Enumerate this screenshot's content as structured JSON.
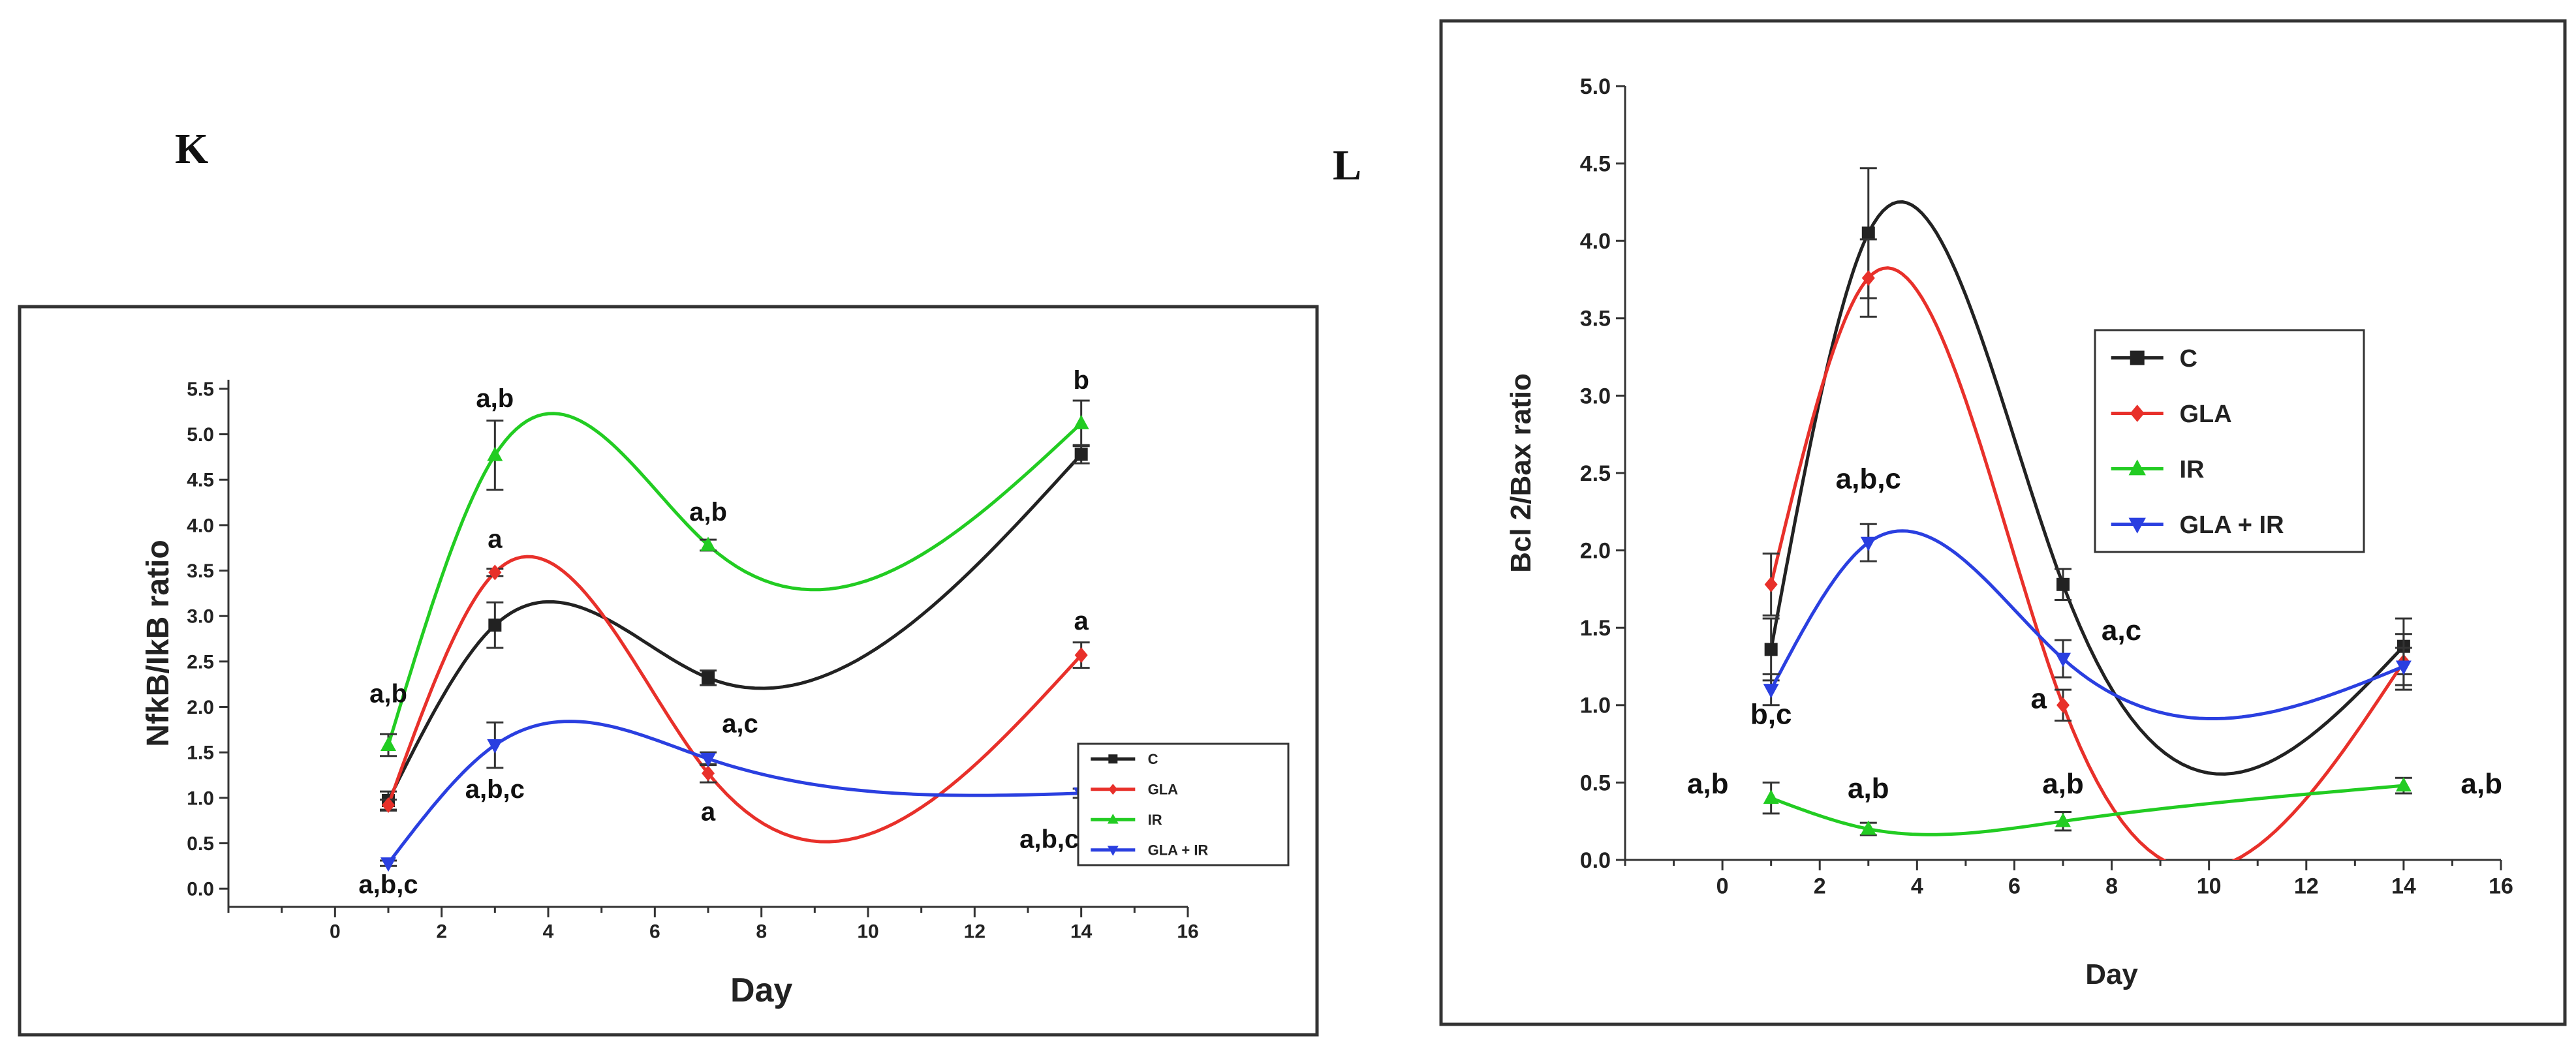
{
  "panels": {
    "left_label": "K",
    "right_label": "L"
  },
  "chart_data": [
    {
      "type": "line",
      "panel": "K",
      "xlabel": "Day",
      "ylabel": "NfkB/IkB ratio",
      "xlim": [
        -2,
        16
      ],
      "ylim": [
        -0.2,
        5.6
      ],
      "xticks": [
        0,
        2,
        4,
        6,
        8,
        10,
        12,
        14,
        16
      ],
      "yticks": [
        0.0,
        0.5,
        1.0,
        1.5,
        2.0,
        2.5,
        3.0,
        3.5,
        4.0,
        4.5,
        5.0,
        5.5
      ],
      "x": [
        1,
        3,
        7,
        14
      ],
      "series": [
        {
          "name": "C",
          "color": "#222222",
          "marker": "square",
          "values": [
            0.97,
            2.9,
            2.32,
            4.78
          ],
          "errors": [
            0.1,
            0.25,
            0.08,
            0.1
          ]
        },
        {
          "name": "GLA",
          "color": "#e8302a",
          "marker": "diamond",
          "values": [
            0.92,
            3.48,
            1.27,
            2.57
          ],
          "errors": [
            0.06,
            0.04,
            0.1,
            0.14
          ]
        },
        {
          "name": "IR",
          "color": "#22cc22",
          "marker": "triangle-up",
          "values": [
            1.58,
            4.77,
            3.78,
            5.12
          ],
          "errors": [
            0.12,
            0.38,
            0.06,
            0.25
          ]
        },
        {
          "name": "GLA + IR",
          "color": "#2a3fe0",
          "marker": "triangle-down",
          "values": [
            0.28,
            1.58,
            1.43,
            1.05
          ],
          "errors": [
            0.03,
            0.25,
            0.07,
            0.05
          ]
        }
      ],
      "annotations": [
        {
          "text": "a,b",
          "x": 1,
          "y": 2.05
        },
        {
          "text": "a,b,c",
          "x": 1,
          "y": -0.05
        },
        {
          "text": "a,b",
          "x": 3,
          "y": 5.3
        },
        {
          "text": "a",
          "x": 3,
          "y": 3.75
        },
        {
          "text": "a,b,c",
          "x": 3,
          "y": 1.0
        },
        {
          "text": "a,b",
          "x": 7,
          "y": 4.05
        },
        {
          "text": "a,c",
          "x": 7.6,
          "y": 1.72
        },
        {
          "text": "a",
          "x": 7,
          "y": 0.75
        },
        {
          "text": "b",
          "x": 14,
          "y": 5.5
        },
        {
          "text": "a",
          "x": 14,
          "y": 2.85
        },
        {
          "text": "a,b,c",
          "x": 13.4,
          "y": 0.45
        }
      ]
    },
    {
      "type": "line",
      "panel": "L",
      "xlabel": "Day",
      "ylabel": "Bcl 2/Bax ratio",
      "xlim": [
        -2,
        16
      ],
      "ylim": [
        0.0,
        5.0
      ],
      "xticks": [
        0,
        2,
        4,
        6,
        8,
        10,
        12,
        14,
        16
      ],
      "yticks": [
        0.0,
        0.5,
        1.0,
        1.5,
        2.0,
        2.5,
        3.0,
        3.5,
        4.0,
        4.5,
        5.0
      ],
      "x": [
        1,
        3,
        7,
        14
      ],
      "series": [
        {
          "name": "C",
          "color": "#222222",
          "marker": "square",
          "values": [
            1.36,
            4.05,
            1.78,
            1.38
          ],
          "errors": [
            0.2,
            0.42,
            0.1,
            0.18
          ]
        },
        {
          "name": "GLA",
          "color": "#e8302a",
          "marker": "diamond",
          "values": [
            1.78,
            3.76,
            1.0,
            1.28
          ],
          "errors": [
            0.2,
            0.25,
            0.1,
            0.18
          ]
        },
        {
          "name": "IR",
          "color": "#22cc22",
          "marker": "triangle-up",
          "values": [
            0.4,
            0.2,
            0.25,
            0.48
          ],
          "errors": [
            0.1,
            0.04,
            0.06,
            0.05
          ]
        },
        {
          "name": "GLA + IR",
          "color": "#2a3fe0",
          "marker": "triangle-down",
          "values": [
            1.1,
            2.05,
            1.3,
            1.25
          ],
          "errors": [
            0.1,
            0.12,
            0.12,
            0.12
          ]
        }
      ],
      "annotations": [
        {
          "text": "a,b,c",
          "x": 3,
          "y": 2.4
        },
        {
          "text": "a,c",
          "x": 8.2,
          "y": 1.42
        },
        {
          "text": "a",
          "x": 6.5,
          "y": 0.98
        },
        {
          "text": "b,c",
          "x": 1,
          "y": 0.88
        },
        {
          "text": "a,b",
          "x": -0.3,
          "y": 0.43
        },
        {
          "text": "a,b",
          "x": 3,
          "y": 0.4
        },
        {
          "text": "a,b",
          "x": 7,
          "y": 0.43
        },
        {
          "text": "a,b",
          "x": 15.6,
          "y": 0.43
        }
      ]
    }
  ]
}
